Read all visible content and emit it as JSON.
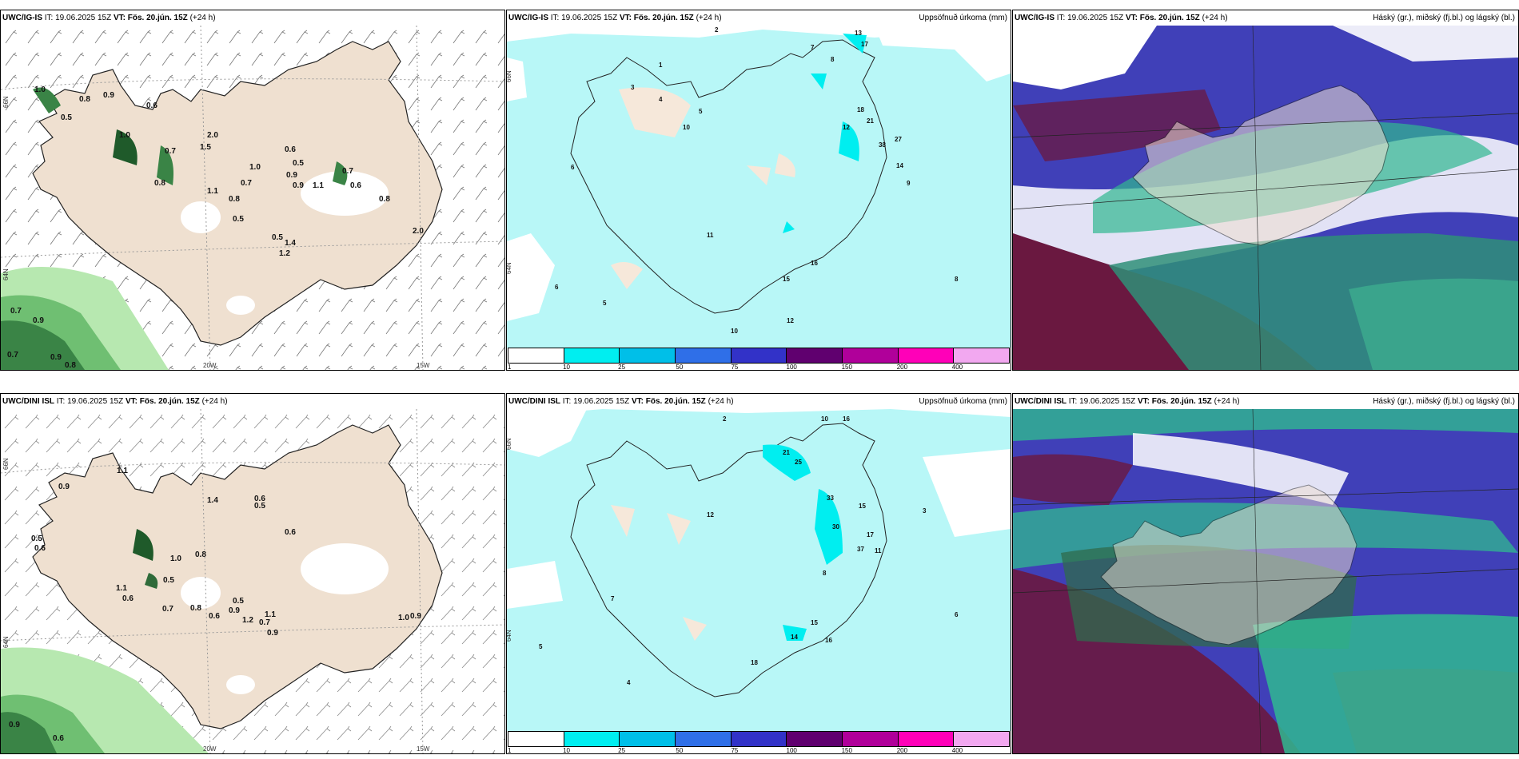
{
  "rows": [
    {
      "model": "UWC/IG-IS",
      "it": "IT: 19.06.2025 15Z",
      "vt_label": "VT:",
      "vt": "Fös. 20.jún. 15Z",
      "step": "(+24 h)",
      "precip_title": "Uppsöfnuð úrkoma (mm)",
      "cloud_title": "Háský (gr.), miðský (fj.bl.) og lágský (bl.)",
      "left_values": [
        "1.0",
        "0.8",
        "0.9",
        "0.6",
        "1.0",
        "0.7",
        "0.5",
        "1.5",
        "0.8",
        "2.0",
        "1.0",
        "0.6",
        "0.5",
        "0.9",
        "0.7",
        "1.1",
        "0.8",
        "0.5",
        "0.7",
        "0.6",
        "0.5",
        "0.9",
        "0.8",
        "1.1",
        "1.4",
        "1.2",
        "2.0",
        "0.7",
        "0.9",
        "0.7",
        "0.8",
        "0.9"
      ],
      "mid_values": [
        "2",
        "7",
        "8",
        "13",
        "17",
        "1",
        "3",
        "4",
        "5",
        "10",
        "12",
        "21",
        "18",
        "27",
        "38",
        "14",
        "9",
        "6",
        "11",
        "15",
        "16",
        "6",
        "5",
        "8",
        "12",
        "10"
      ]
    },
    {
      "model": "UWC/DINI ISL",
      "it": "IT: 19.06.2025 15Z",
      "vt_label": "VT:",
      "vt": "Fös. 20.jún. 15Z",
      "step": "(+24 h)",
      "precip_title": "Uppsöfnuð úrkoma (mm)",
      "cloud_title": "Háský (gr.), miðský (fj.bl.) og lágský (bl.)",
      "left_values": [
        "1.1",
        "0.9",
        "1.4",
        "0.6",
        "0.5",
        "0.6",
        "0.5",
        "0.6",
        "1.0",
        "0.8",
        "0.5",
        "1.1",
        "0.6",
        "0.7",
        "0.8",
        "0.6",
        "0.5",
        "0.9",
        "1.2",
        "0.7",
        "1.1",
        "0.9",
        "1.0",
        "0.9",
        "0.9",
        "0.6"
      ],
      "mid_values": [
        "2",
        "10",
        "16",
        "21",
        "25",
        "33",
        "30",
        "15",
        "17",
        "37",
        "11",
        "12",
        "8",
        "14",
        "15",
        "18",
        "16",
        "7",
        "6",
        "5",
        "4",
        "3"
      ]
    }
  ],
  "axis": {
    "lat66": "66N",
    "lat64": "64N",
    "lon20": "20W",
    "lon15": "15W"
  },
  "legend": {
    "ticks": [
      "1",
      "10",
      "25",
      "50",
      "75",
      "100",
      "150",
      "200",
      "400"
    ],
    "colors": [
      "#b8f7f7",
      "#00eef0",
      "#00bfe8",
      "#2f6fe8",
      "#3232c8",
      "#60006f",
      "#b0009a",
      "#ff00b8",
      "#f2a8f0"
    ]
  },
  "colors": {
    "land": "#efe0d0",
    "precip_light": "#b8f7f7",
    "green_light": "#b7e8b0",
    "green_dark": "#2f6b3a",
    "cloud_high": "#30b890",
    "cloud_mid": "#4040b8",
    "cloud_low": "#6a1840"
  }
}
